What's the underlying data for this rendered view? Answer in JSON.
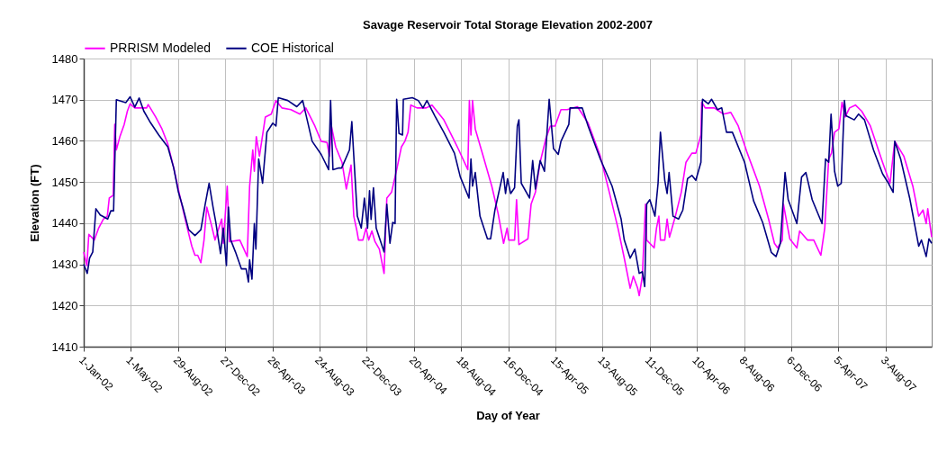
{
  "chart_data": {
    "type": "line",
    "title": "Savage Reservoir Total Storage Elevation 2002-2007",
    "xlabel": "Day of Year",
    "ylabel": "Elevation (FT)",
    "legend": "top",
    "grid": true,
    "xlim": [
      "2002-01-01",
      "2007-11-28"
    ],
    "xticks": [
      {
        "value": "2002-01-01",
        "label": "1-Jan-02"
      },
      {
        "value": "2002-05-01",
        "label": "1-May-02"
      },
      {
        "value": "2002-08-29",
        "label": "29-Aug-02"
      },
      {
        "value": "2002-12-27",
        "label": "27-Dec-02"
      },
      {
        "value": "2003-04-26",
        "label": "26-Apr-03"
      },
      {
        "value": "2003-08-24",
        "label": "24-Aug-03"
      },
      {
        "value": "2003-12-22",
        "label": "22-Dec-03"
      },
      {
        "value": "2004-04-20",
        "label": "20-Apr-04"
      },
      {
        "value": "2004-08-18",
        "label": "18-Aug-04"
      },
      {
        "value": "2004-12-16",
        "label": "16-Dec-04"
      },
      {
        "value": "2005-04-15",
        "label": "15-Apr-05"
      },
      {
        "value": "2005-08-13",
        "label": "13-Aug-05"
      },
      {
        "value": "2005-12-11",
        "label": "11-Dec-05"
      },
      {
        "value": "2006-04-10",
        "label": "10-Apr-06"
      },
      {
        "value": "2006-08-08",
        "label": "8-Aug-06"
      },
      {
        "value": "2006-12-06",
        "label": "6-Dec-06"
      },
      {
        "value": "2007-04-05",
        "label": "5-Apr-07"
      },
      {
        "value": "2007-08-03",
        "label": "3-Aug-07"
      }
    ],
    "ylim": [
      1410,
      1480
    ],
    "yticks": [
      1410,
      1420,
      1430,
      1440,
      1450,
      1460,
      1470,
      1480
    ],
    "series": [
      {
        "name": "PRRISM Modeled",
        "color": "#ff00ff",
        "x": [
          "2002-01-01",
          "2002-01-09",
          "2002-01-14",
          "2002-01-28",
          "2002-02-08",
          "2002-02-20",
          "2002-03-02",
          "2002-03-07",
          "2002-03-17",
          "2002-03-21",
          "2002-03-25",
          "2002-04-03",
          "2002-04-14",
          "2002-04-22",
          "2002-04-29",
          "2002-05-11",
          "2002-06-10",
          "2002-06-14",
          "2002-07-03",
          "2002-07-19",
          "2002-08-03",
          "2002-08-18",
          "2002-09-02",
          "2002-09-18",
          "2002-10-03",
          "2002-10-11",
          "2002-10-18",
          "2002-10-26",
          "2002-11-03",
          "2002-11-10",
          "2002-11-22",
          "2002-12-01",
          "2002-12-18",
          "2002-12-22",
          "2003-01-01",
          "2003-01-07",
          "2003-02-02",
          "2003-02-21",
          "2003-02-27",
          "2003-03-07",
          "2003-03-11",
          "2003-03-16",
          "2003-03-24",
          "2003-04-08",
          "2003-04-23",
          "2003-05-05",
          "2003-05-20",
          "2003-06-12",
          "2003-07-05",
          "2003-07-20",
          "2003-08-12",
          "2003-08-28",
          "2003-09-12",
          "2003-09-18",
          "2003-09-23",
          "2003-10-04",
          "2003-10-20",
          "2003-10-31",
          "2003-11-12",
          "2003-11-19",
          "2003-11-27",
          "2003-12-01",
          "2003-12-12",
          "2003-12-20",
          "2003-12-27",
          "2004-01-04",
          "2004-01-12",
          "2004-01-23",
          "2004-02-04",
          "2004-02-11",
          "2004-02-23",
          "2004-03-08",
          "2004-03-19",
          "2004-03-28",
          "2004-04-05",
          "2004-04-12",
          "2004-04-28",
          "2004-05-21",
          "2004-06-05",
          "2004-07-05",
          "2004-07-28",
          "2004-08-12",
          "2004-09-04",
          "2004-09-08",
          "2004-09-12",
          "2004-09-16",
          "2004-09-23",
          "2004-10-13",
          "2004-11-04",
          "2004-11-20",
          "2004-12-04",
          "2004-12-13",
          "2004-12-17",
          "2005-01-01",
          "2005-01-06",
          "2005-01-12",
          "2005-02-04",
          "2005-02-12",
          "2005-02-23",
          "2005-03-07",
          "2005-03-22",
          "2005-04-02",
          "2005-04-14",
          "2005-04-29",
          "2005-05-15",
          "2005-06-10",
          "2005-07-07",
          "2005-08-07",
          "2005-08-30",
          "2005-09-21",
          "2005-10-07",
          "2005-10-22",
          "2005-10-30",
          "2005-11-10",
          "2005-11-14",
          "2005-11-22",
          "2005-11-30",
          "2005-12-03",
          "2005-12-22",
          "2005-12-28",
          "2006-01-03",
          "2006-01-07",
          "2006-01-18",
          "2006-01-24",
          "2006-01-30",
          "2006-02-14",
          "2006-03-01",
          "2006-03-13",
          "2006-03-28",
          "2006-04-07",
          "2006-04-20",
          "2006-04-22",
          "2006-05-01",
          "2006-05-24",
          "2006-06-16",
          "2006-07-05",
          "2006-07-24",
          "2006-08-16",
          "2006-09-16",
          "2006-10-09",
          "2006-10-24",
          "2006-11-01",
          "2006-11-13",
          "2006-11-16",
          "2006-12-02",
          "2006-12-20",
          "2006-12-27",
          "2007-01-16",
          "2007-02-01",
          "2007-02-19",
          "2007-03-01",
          "2007-03-11",
          "2007-03-18",
          "2007-03-26",
          "2007-04-06",
          "2007-04-14",
          "2007-04-22",
          "2007-05-03",
          "2007-05-18",
          "2007-06-03",
          "2007-06-25",
          "2007-07-26",
          "2007-08-14",
          "2007-08-26",
          "2007-09-18",
          "2007-10-11",
          "2007-10-26",
          "2007-11-06",
          "2007-11-14",
          "2007-11-18",
          "2007-11-28"
        ],
        "values": [
          1433,
          1429.7,
          1437.3,
          1435.9,
          1438.8,
          1441,
          1441.7,
          1446.1,
          1446.8,
          1464,
          1457.8,
          1461,
          1464,
          1467.2,
          1469,
          1468,
          1468,
          1468.8,
          1465.8,
          1462.9,
          1459.2,
          1453.4,
          1446.8,
          1440.2,
          1434.4,
          1432.2,
          1432.2,
          1430.4,
          1435.9,
          1443.9,
          1439.5,
          1435.9,
          1441,
          1435.1,
          1449,
          1435.5,
          1435.9,
          1431.9,
          1449,
          1457.8,
          1452.6,
          1461,
          1456.3,
          1465.8,
          1466.5,
          1469.8,
          1468,
          1467.6,
          1466.5,
          1468,
          1463.6,
          1459.9,
          1459.6,
          1456.3,
          1463.6,
          1458.5,
          1454.8,
          1448.3,
          1454.1,
          1441.7,
          1438.1,
          1435.9,
          1435.9,
          1438.8,
          1435.9,
          1438.1,
          1435.5,
          1433.7,
          1427.8,
          1446.1,
          1447.5,
          1453.4,
          1458.5,
          1459.9,
          1462.1,
          1468.7,
          1468,
          1468,
          1468.7,
          1465.1,
          1460.7,
          1457.8,
          1453,
          1469.8,
          1461.4,
          1469.8,
          1462.9,
          1456.3,
          1449,
          1442.4,
          1435.1,
          1438.8,
          1435.9,
          1435.9,
          1445.7,
          1434.8,
          1436.2,
          1444.6,
          1447.5,
          1454.8,
          1460.7,
          1463.6,
          1463.6,
          1467.6,
          1467.6,
          1468.3,
          1464.3,
          1456.3,
          1447.5,
          1438.8,
          1431.5,
          1424.2,
          1427.1,
          1424.2,
          1422.4,
          1427.1,
          1444.6,
          1435.9,
          1434,
          1438.8,
          1441.7,
          1435.9,
          1435.9,
          1441,
          1436.6,
          1441.7,
          1447.5,
          1454.8,
          1457,
          1457,
          1461.4,
          1469.4,
          1468,
          1468,
          1466.5,
          1466.9,
          1463.6,
          1457,
          1449,
          1441,
          1435.1,
          1434,
          1435.9,
          1444.6,
          1436.2,
          1434,
          1438.1,
          1435.9,
          1435.9,
          1432.2,
          1438.8,
          1455.6,
          1457,
          1462.1,
          1462.9,
          1469.4,
          1465.8,
          1468,
          1468.7,
          1467.2,
          1463.6,
          1454.8,
          1449.7,
          1459.9,
          1456.3,
          1449,
          1441.7,
          1443.2,
          1439.9,
          1443.5,
          1436.6
        ]
      },
      {
        "name": "COE Historical",
        "color": "#000080",
        "x": [
          "2002-01-01",
          "2002-01-10",
          "2002-01-16",
          "2002-01-24",
          "2002-02-01",
          "2002-02-12",
          "2002-03-03",
          "2002-03-11",
          "2002-03-18",
          "2002-03-25",
          "2002-04-18",
          "2002-04-29",
          "2002-05-11",
          "2002-05-22",
          "2002-06-03",
          "2002-06-18",
          "2002-07-11",
          "2002-08-03",
          "2002-08-18",
          "2002-08-30",
          "2002-09-10",
          "2002-09-25",
          "2002-10-11",
          "2002-10-26",
          "2002-11-06",
          "2002-11-16",
          "2002-11-26",
          "2002-12-03",
          "2002-12-15",
          "2002-12-22",
          "2002-12-30",
          "2003-01-04",
          "2003-01-10",
          "2003-01-22",
          "2003-02-06",
          "2003-02-18",
          "2003-02-24",
          "2003-02-27",
          "2003-03-05",
          "2003-03-11",
          "2003-03-15",
          "2003-03-22",
          "2003-04-01",
          "2003-04-12",
          "2003-04-27",
          "2003-05-05",
          "2003-05-11",
          "2003-06-04",
          "2003-06-27",
          "2003-07-12",
          "2003-08-05",
          "2003-08-28",
          "2003-09-16",
          "2003-09-21",
          "2003-09-27",
          "2003-10-12",
          "2003-10-19",
          "2003-11-08",
          "2003-11-14",
          "2003-11-19",
          "2003-11-28",
          "2003-12-08",
          "2003-12-16",
          "2003-12-24",
          "2003-12-29",
          "2004-01-02",
          "2004-01-08",
          "2004-01-15",
          "2004-02-04",
          "2004-02-11",
          "2004-02-19",
          "2004-02-26",
          "2004-03-03",
          "2004-03-07",
          "2004-03-13",
          "2004-03-22",
          "2004-03-24",
          "2004-04-16",
          "2004-05-01",
          "2004-05-13",
          "2004-05-23",
          "2004-06-12",
          "2004-07-05",
          "2004-08-01",
          "2004-08-16",
          "2004-09-07",
          "2004-09-12",
          "2004-09-16",
          "2004-09-23",
          "2004-10-05",
          "2004-10-24",
          "2004-11-01",
          "2004-11-12",
          "2004-12-03",
          "2004-12-09",
          "2004-12-14",
          "2004-12-22",
          "2005-01-01",
          "2005-01-08",
          "2005-01-12",
          "2005-01-18",
          "2005-02-08",
          "2005-02-16",
          "2005-02-23",
          "2005-03-07",
          "2005-03-18",
          "2005-03-30",
          "2005-04-10",
          "2005-04-22",
          "2005-04-29",
          "2005-05-19",
          "2005-05-22",
          "2005-06-22",
          "2005-07-07",
          "2005-08-07",
          "2005-09-06",
          "2005-09-29",
          "2005-10-07",
          "2005-10-22",
          "2005-11-03",
          "2005-11-14",
          "2005-11-22",
          "2005-11-28",
          "2005-12-03",
          "2005-12-11",
          "2005-12-24",
          "2006-01-01",
          "2006-01-07",
          "2006-01-18",
          "2006-01-24",
          "2006-01-29",
          "2006-02-08",
          "2006-02-22",
          "2006-03-05",
          "2006-03-17",
          "2006-03-28",
          "2006-04-07",
          "2006-04-20",
          "2006-04-24",
          "2006-05-09",
          "2006-05-17",
          "2006-06-01",
          "2006-06-12",
          "2006-06-24",
          "2006-07-09",
          "2006-08-09",
          "2006-09-01",
          "2006-09-24",
          "2006-10-16",
          "2006-10-28",
          "2006-11-08",
          "2006-11-20",
          "2006-11-28",
          "2006-12-20",
          "2007-01-01",
          "2007-01-12",
          "2007-01-28",
          "2007-02-22",
          "2007-03-03",
          "2007-03-11",
          "2007-03-17",
          "2007-03-26",
          "2007-04-03",
          "2007-04-12",
          "2007-04-20",
          "2007-04-24",
          "2007-05-15",
          "2007-05-26",
          "2007-06-10",
          "2007-07-03",
          "2007-07-26",
          "2007-08-10",
          "2007-08-22",
          "2007-08-26",
          "2007-09-10",
          "2007-10-03",
          "2007-10-26",
          "2007-11-02",
          "2007-11-14",
          "2007-11-21",
          "2007-11-28"
        ],
        "values": [
          1430,
          1427.8,
          1431.5,
          1433,
          1443.5,
          1442,
          1441,
          1443,
          1443,
          1470,
          1469.3,
          1470.7,
          1468.2,
          1470.4,
          1467.2,
          1464.7,
          1461.4,
          1458.5,
          1453.4,
          1447.5,
          1443.9,
          1438.4,
          1437,
          1438.4,
          1444.6,
          1449.7,
          1443.9,
          1440.2,
          1432.6,
          1438.8,
          1429.7,
          1443.9,
          1435.9,
          1433,
          1428.9,
          1428.9,
          1425.7,
          1431.1,
          1426.4,
          1439.9,
          1433.7,
          1455.6,
          1449.7,
          1462.1,
          1464.3,
          1463.6,
          1470.5,
          1469.8,
          1468.3,
          1469.8,
          1459.9,
          1456.7,
          1453,
          1469.8,
          1453,
          1453.4,
          1453.4,
          1457.8,
          1464.7,
          1456.3,
          1441.7,
          1438.8,
          1446.1,
          1438.8,
          1447.9,
          1440.9,
          1448.6,
          1438.8,
          1433,
          1444.6,
          1435.1,
          1440.2,
          1439.9,
          1470.1,
          1461.8,
          1461.4,
          1470.1,
          1470.5,
          1469.8,
          1468,
          1469.8,
          1466.1,
          1462.1,
          1457,
          1451.2,
          1446.1,
          1455.6,
          1449,
          1452.3,
          1441.7,
          1436.2,
          1436.2,
          1443.2,
          1452.3,
          1447.2,
          1450.8,
          1447.2,
          1448.6,
          1463.6,
          1465.1,
          1449.7,
          1446.1,
          1455.2,
          1448.3,
          1455.2,
          1452.6,
          1470.1,
          1458.1,
          1456.7,
          1459.9,
          1464,
          1468,
          1468,
          1463.6,
          1455.6,
          1449,
          1441,
          1435.9,
          1431.5,
          1433.7,
          1427.8,
          1428.2,
          1424.6,
          1444.6,
          1445.7,
          1441.7,
          1449.7,
          1462.1,
          1450.4,
          1447.2,
          1452.3,
          1441.7,
          1441,
          1443.2,
          1450.8,
          1451.6,
          1450.4,
          1454.8,
          1470.1,
          1469,
          1470.1,
          1467.6,
          1468,
          1462.1,
          1462.1,
          1454.8,
          1445.4,
          1440.2,
          1432.9,
          1431.9,
          1435.1,
          1452.3,
          1445.7,
          1439.9,
          1451.2,
          1452.3,
          1445.7,
          1439.9,
          1455.6,
          1454.8,
          1466.5,
          1452.6,
          1449,
          1449.7,
          1469.8,
          1466.1,
          1465.1,
          1466.5,
          1465.1,
          1457.8,
          1452,
          1449.7,
          1447.5,
          1459.9,
          1455.6,
          1446.1,
          1434.4,
          1435.9,
          1431.9,
          1436.2,
          1435.1
        ]
      }
    ]
  }
}
